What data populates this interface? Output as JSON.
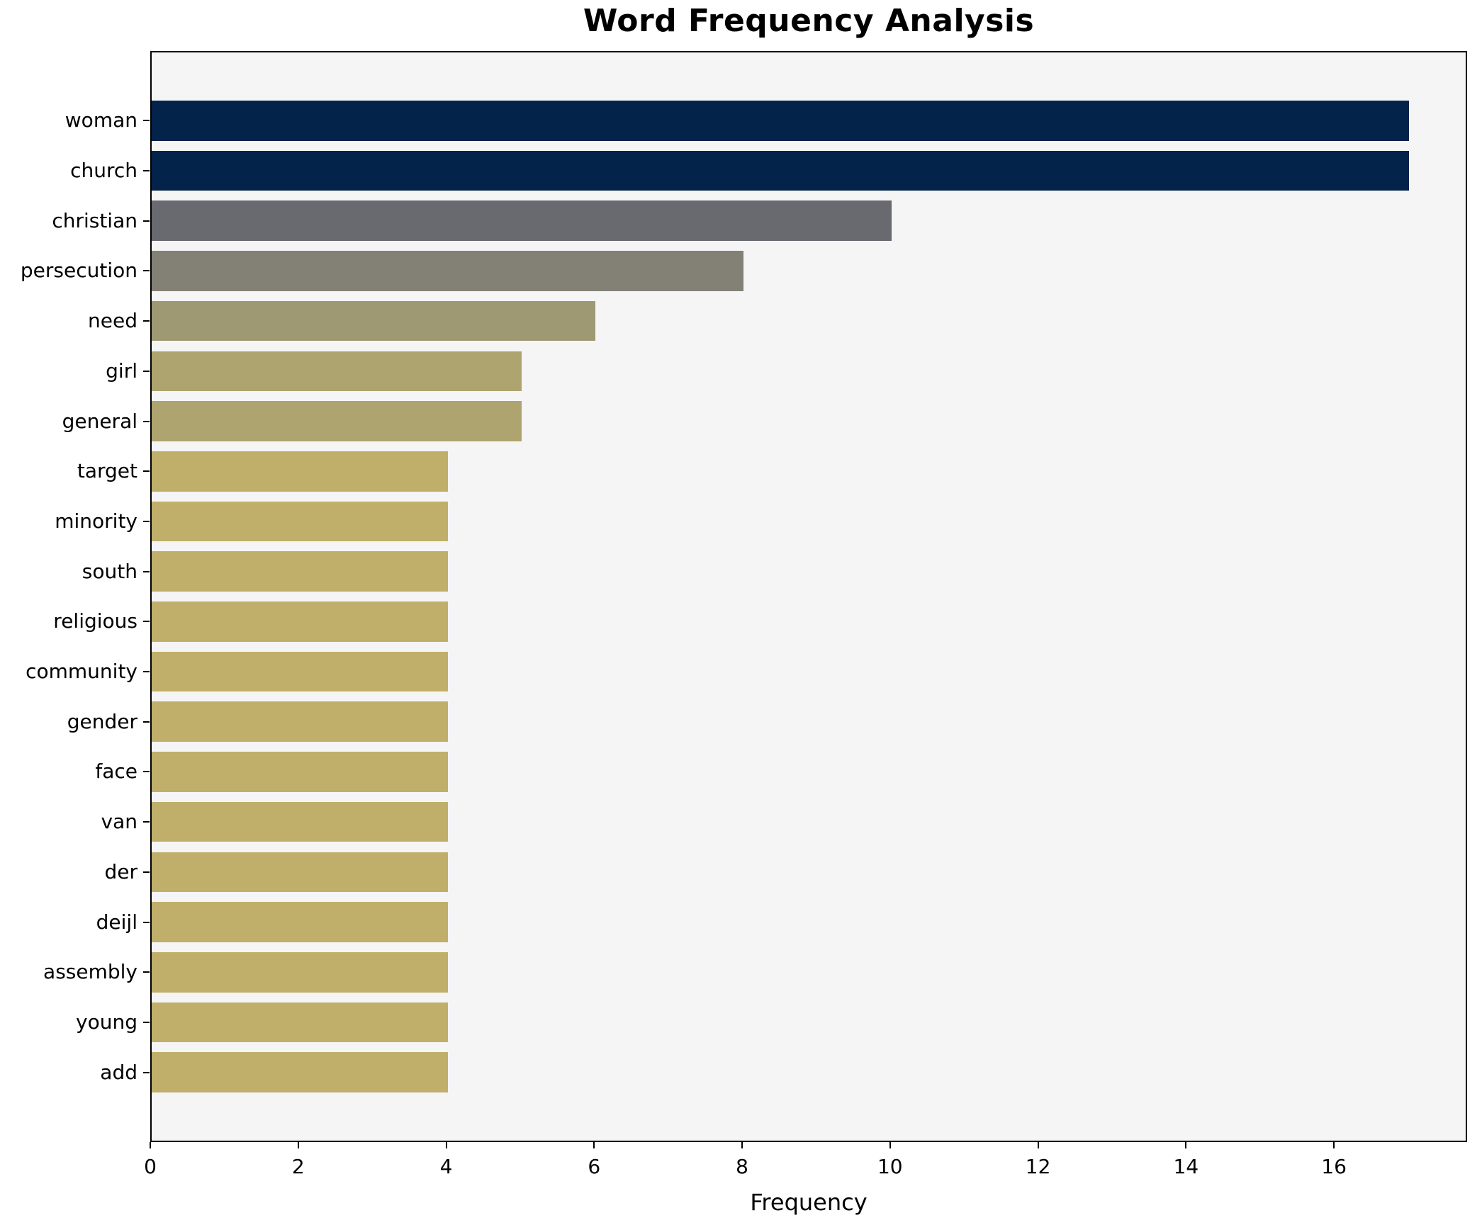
{
  "chart_data": {
    "type": "bar",
    "orientation": "horizontal",
    "title": "Word Frequency Analysis",
    "xlabel": "Frequency",
    "ylabel": "",
    "categories": [
      "woman",
      "church",
      "christian",
      "persecution",
      "need",
      "girl",
      "general",
      "target",
      "minority",
      "south",
      "religious",
      "community",
      "gender",
      "face",
      "van",
      "der",
      "deijl",
      "assembly",
      "young",
      "add"
    ],
    "values": [
      17,
      17,
      10,
      8,
      6,
      5,
      5,
      4,
      4,
      4,
      4,
      4,
      4,
      4,
      4,
      4,
      4,
      4,
      4,
      4
    ],
    "bar_colors": [
      "#04234b",
      "#04234b",
      "#696a70",
      "#838076",
      "#9e9873",
      "#ada46f",
      "#ada46f",
      "#bfaf6a",
      "#bfaf6a",
      "#bfaf6a",
      "#bfaf6a",
      "#bfaf6a",
      "#bfaf6a",
      "#bfaf6a",
      "#bfaf6a",
      "#bfaf6a",
      "#bfaf6a",
      "#bfaf6a",
      "#bfaf6a",
      "#bfaf6a"
    ],
    "xticks": [
      0,
      2,
      4,
      6,
      8,
      10,
      12,
      14,
      16
    ],
    "xlim": [
      0,
      17.8
    ],
    "grid": false,
    "legend": "none",
    "plot_background": "#f5f5f6",
    "figure_background": "#ffffff",
    "spine_color": "#000000"
  }
}
